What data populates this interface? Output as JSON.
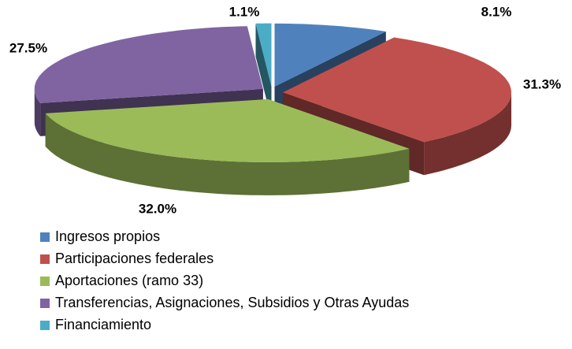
{
  "chart_data": {
    "type": "pie",
    "categories": [
      "Ingresos propios",
      "Participaciones federales",
      "Aportaciones (ramo 33)",
      "Transferencias, Asignaciones, Subsidios y Otras Ayudas",
      "Financiamiento"
    ],
    "values": [
      8.1,
      31.3,
      32.0,
      27.5,
      1.1
    ],
    "value_labels": [
      "8.1%",
      "31.3%",
      "32.0%",
      "27.5%",
      "1.1%"
    ],
    "colors": [
      "#4f81bd",
      "#c0504d",
      "#9bbb59",
      "#8064a2",
      "#4bacc6"
    ]
  }
}
